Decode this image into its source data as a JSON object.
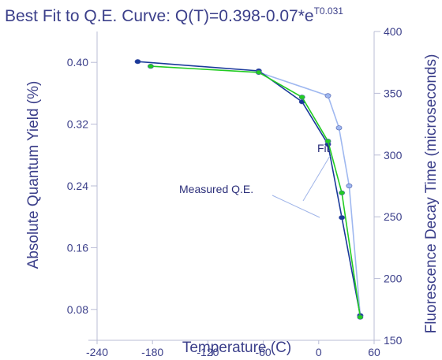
{
  "chart_data": {
    "type": "line",
    "title_main": "Best Fit to Q.E. Curve:  Q(T)=0.398-0.07*e",
    "title_sup": "T0.031",
    "xlabel": "Temperature (C)",
    "ylabel": "Absolute Quantum Yield (%)",
    "y2label": "Fluorescence Decay Time (microseconds)",
    "xlim": [
      -240,
      60
    ],
    "ylim": [
      0.04,
      0.44
    ],
    "y2lim": [
      150,
      400
    ],
    "xticks": [
      "-240",
      "-180",
      "-120",
      "-60",
      "0",
      "60"
    ],
    "yticks": [
      "0.08",
      "0.16",
      "0.24",
      "0.32",
      "0.40"
    ],
    "y2ticks": [
      "150",
      "200",
      "250",
      "300",
      "350",
      "400"
    ],
    "grid": false,
    "series": [
      {
        "axis": "left",
        "color": "#1a3a9a",
        "x": [
          -196,
          -65,
          -18,
          10,
          25,
          45
        ],
        "y": [
          0.401,
          0.389,
          0.349,
          0.294,
          0.199,
          0.072
        ]
      },
      {
        "axis": "left",
        "color": "#22cc22",
        "x": [
          -182,
          -65,
          -18,
          10,
          25,
          45
        ],
        "y": [
          0.395,
          0.387,
          0.355,
          0.298,
          0.231,
          0.07
        ]
      },
      {
        "axis": "right",
        "color": "#9fb8f0",
        "x": [
          -65,
          10,
          22,
          33,
          45
        ],
        "y": [
          367,
          348,
          322,
          275,
          170
        ]
      }
    ],
    "annotations": [
      {
        "text": "Fit",
        "target": {
          "x": 22,
          "y": 0.235
        }
      },
      {
        "text": "Measured Q.E.",
        "target": {
          "x": 23,
          "y": 0.233
        }
      }
    ]
  }
}
